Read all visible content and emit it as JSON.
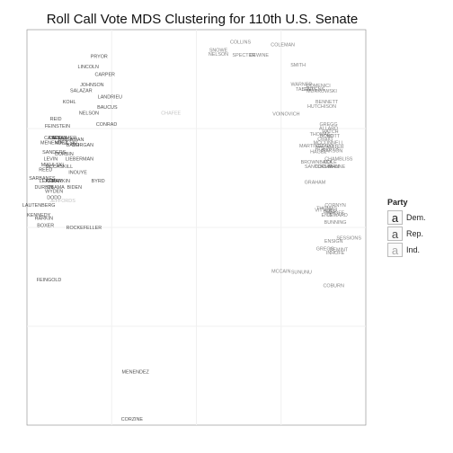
{
  "chart_data": {
    "type": "scatter",
    "title": "Roll Call Vote MDS Clustering for 110th U.S. Senate",
    "xlabel": "",
    "ylabel": "",
    "xlim": [
      0,
      100
    ],
    "ylim": [
      0,
      100
    ],
    "grid": true,
    "legend_position": "right",
    "legend": {
      "title": "Party",
      "entries": [
        {
          "key": "a",
          "label": "Dem.",
          "color": "#1a1a1a"
        },
        {
          "key": "a",
          "label": "Rep.",
          "color": "#505050"
        },
        {
          "key": "a",
          "label": "Ind.",
          "color": "#a8a8a8"
        }
      ]
    },
    "series": [
      {
        "name": "Dem.",
        "color": "#1a1a1a",
        "points": [
          {
            "label": "PRYOR",
            "x": 21.3,
            "y": 93.2
          },
          {
            "label": "LINCOLN",
            "x": 18.1,
            "y": 90.5
          },
          {
            "label": "CARPER",
            "x": 23.0,
            "y": 88.6
          },
          {
            "label": "JOHNSON",
            "x": 19.2,
            "y": 86.0
          },
          {
            "label": "SALAZAR",
            "x": 16.0,
            "y": 84.5
          },
          {
            "label": "LANDRIEU",
            "x": 24.5,
            "y": 82.9
          },
          {
            "label": "KOHL",
            "x": 12.5,
            "y": 81.7
          },
          {
            "label": "BAUCUS",
            "x": 23.7,
            "y": 80.3
          },
          {
            "label": "NELSON",
            "x": 18.3,
            "y": 78.8
          },
          {
            "label": "REID",
            "x": 8.5,
            "y": 77.4
          },
          {
            "label": "CONRAD",
            "x": 23.5,
            "y": 76.0
          },
          {
            "label": "FEINSTEIN",
            "x": 9.0,
            "y": 75.6
          },
          {
            "label": "CASEY",
            "x": 7.5,
            "y": 72.6
          },
          {
            "label": "CARDIN",
            "x": 9.0,
            "y": 72.6
          },
          {
            "label": "SCHUMER",
            "x": 11.0,
            "y": 72.6
          },
          {
            "label": "BINGAMAN",
            "x": 13.0,
            "y": 72.1
          },
          {
            "label": "MENENDEZ",
            "x": 8.0,
            "y": 71.4
          },
          {
            "label": "MIKULSKI",
            "x": 11.5,
            "y": 71.3
          },
          {
            "label": "BAYH",
            "x": 13.5,
            "y": 70.8
          },
          {
            "label": "DORGAN",
            "x": 16.5,
            "y": 70.8
          },
          {
            "label": "SANDERS",
            "x": 8.0,
            "y": 69.0
          },
          {
            "label": "DURBIN",
            "x": 11.0,
            "y": 68.5
          },
          {
            "label": "LEVIN",
            "x": 7.0,
            "y": 67.3
          },
          {
            "label": "LIEBERMAN",
            "x": 15.5,
            "y": 67.3
          },
          {
            "label": "MIKULSKI",
            "x": 7.5,
            "y": 65.8
          },
          {
            "label": "MCCASKILL",
            "x": 9.5,
            "y": 65.3
          },
          {
            "label": "REED",
            "x": 5.5,
            "y": 64.5
          },
          {
            "label": "INOUYE",
            "x": 15.0,
            "y": 63.9
          },
          {
            "label": "SARBANES",
            "x": 4.5,
            "y": 62.4
          },
          {
            "label": "LEAHY",
            "x": 6.0,
            "y": 61.7
          },
          {
            "label": "KERRY",
            "x": 8.0,
            "y": 61.7
          },
          {
            "label": "HARKIN",
            "x": 10.0,
            "y": 61.7
          },
          {
            "label": "BYRD",
            "x": 21.0,
            "y": 61.7
          },
          {
            "label": "DURBIN",
            "x": 5.0,
            "y": 60.1
          },
          {
            "label": "OBAMA",
            "x": 8.5,
            "y": 60.1
          },
          {
            "label": "BIDEN",
            "x": 14.0,
            "y": 60.1
          },
          {
            "label": "WYDEN",
            "x": 8.0,
            "y": 59.1
          },
          {
            "label": "DODD",
            "x": 8.0,
            "y": 57.5
          },
          {
            "label": "LAUTENBERG",
            "x": 3.5,
            "y": 55.5
          },
          {
            "label": "KENNEDY",
            "x": 3.5,
            "y": 53.1
          },
          {
            "label": "HARKIN",
            "x": 5.0,
            "y": 52.2
          },
          {
            "label": "BOXER",
            "x": 5.5,
            "y": 50.4
          },
          {
            "label": "ROCKEFELLER",
            "x": 16.8,
            "y": 49.9
          },
          {
            "label": "FEINGOLD",
            "x": 6.5,
            "y": 36.7
          },
          {
            "label": "MENENDEZ",
            "x": 32.0,
            "y": 13.4
          },
          {
            "label": "CORZINE",
            "x": 31.0,
            "y": 1.5
          }
        ]
      },
      {
        "name": "Rep.",
        "color": "#505050",
        "points": [
          {
            "label": "COLLINS",
            "x": 63.0,
            "y": 96.8
          },
          {
            "label": "COLEMAN",
            "x": 75.5,
            "y": 96.1
          },
          {
            "label": "SNOWE",
            "x": 56.5,
            "y": 94.8
          },
          {
            "label": "NELSON",
            "x": 56.5,
            "y": 93.7
          },
          {
            "label": "SPECTER",
            "x": 64.0,
            "y": 93.5
          },
          {
            "label": "DEWINE",
            "x": 68.5,
            "y": 93.5
          },
          {
            "label": "SMITH",
            "x": 80.0,
            "y": 91.0
          },
          {
            "label": "WARNER",
            "x": 81.0,
            "y": 86.1
          },
          {
            "label": "DOMENICI",
            "x": 86.0,
            "y": 85.8
          },
          {
            "label": "TALENT",
            "x": 82.0,
            "y": 84.9
          },
          {
            "label": "STEVENS",
            "x": 84.5,
            "y": 84.9
          },
          {
            "label": "MURKOWSKI",
            "x": 87.0,
            "y": 84.4
          },
          {
            "label": "BENNETT",
            "x": 88.5,
            "y": 81.7
          },
          {
            "label": "HUTCHISON",
            "x": 87.0,
            "y": 80.5
          },
          {
            "label": "VOINOVICH",
            "x": 76.5,
            "y": 78.6
          },
          {
            "label": "GREGG",
            "x": 89.0,
            "y": 76.0
          },
          {
            "label": "ALLARD",
            "x": 89.0,
            "y": 75.0
          },
          {
            "label": "HATCH",
            "x": 89.5,
            "y": 74.2
          },
          {
            "label": "THOMAS",
            "x": 86.5,
            "y": 73.5
          },
          {
            "label": "BOND",
            "x": 88.5,
            "y": 73.0
          },
          {
            "label": "LOTT",
            "x": 90.5,
            "y": 73.0
          },
          {
            "label": "CRAIG",
            "x": 88.0,
            "y": 72.2
          },
          {
            "label": "MCCONNELL",
            "x": 89.0,
            "y": 71.4
          },
          {
            "label": "MARTINEZ",
            "x": 84.0,
            "y": 70.6
          },
          {
            "label": "CRAPO",
            "x": 88.0,
            "y": 70.6
          },
          {
            "label": "VITTER",
            "x": 91.0,
            "y": 70.3
          },
          {
            "label": "ROBERTS",
            "x": 88.5,
            "y": 69.8
          },
          {
            "label": "ISAKSON",
            "x": 90.0,
            "y": 69.3
          },
          {
            "label": "HAGEL",
            "x": 86.0,
            "y": 69.1
          },
          {
            "label": "CHAMBLISS",
            "x": 92.0,
            "y": 67.3
          },
          {
            "label": "BROWNBACK",
            "x": 85.5,
            "y": 66.5
          },
          {
            "label": "DOLE",
            "x": 89.5,
            "y": 66.5
          },
          {
            "label": "SANTORUM",
            "x": 86.0,
            "y": 65.3
          },
          {
            "label": "COCHRAN",
            "x": 88.5,
            "y": 65.3
          },
          {
            "label": "THUNE",
            "x": 91.5,
            "y": 65.3
          },
          {
            "label": "GRAHAM",
            "x": 85.0,
            "y": 61.4
          },
          {
            "label": "CORNYN",
            "x": 91.0,
            "y": 55.5
          },
          {
            "label": "THOMAS",
            "x": 88.5,
            "y": 54.8
          },
          {
            "label": "VITTER",
            "x": 87.5,
            "y": 54.3
          },
          {
            "label": "BURR",
            "x": 89.5,
            "y": 54.0
          },
          {
            "label": "INHOFE",
            "x": 91.0,
            "y": 53.6
          },
          {
            "label": "EWARD",
            "x": 92.0,
            "y": 53.1
          },
          {
            "label": "ENZI",
            "x": 88.5,
            "y": 53.1
          },
          {
            "label": "BUNNING",
            "x": 91.0,
            "y": 51.2
          },
          {
            "label": "SESSIONS",
            "x": 95.0,
            "y": 47.3
          },
          {
            "label": "ENSIGN",
            "x": 90.5,
            "y": 46.5
          },
          {
            "label": "GREGG",
            "x": 88.0,
            "y": 44.5
          },
          {
            "label": "DEMINT",
            "x": 92.0,
            "y": 44.3
          },
          {
            "label": "INHOFE",
            "x": 91.0,
            "y": 43.5
          },
          {
            "label": "MCCAIN",
            "x": 75.0,
            "y": 38.8
          },
          {
            "label": "SUNUNU",
            "x": 81.0,
            "y": 38.6
          },
          {
            "label": "COBURN",
            "x": 90.5,
            "y": 35.2
          }
        ]
      },
      {
        "name": "Ind.",
        "color": "#a8a8a8",
        "points": [
          {
            "label": "CHAFEE",
            "x": 42.5,
            "y": 78.8
          },
          {
            "label": "JEFFORDS",
            "x": 10.5,
            "y": 56.7
          }
        ]
      }
    ]
  }
}
